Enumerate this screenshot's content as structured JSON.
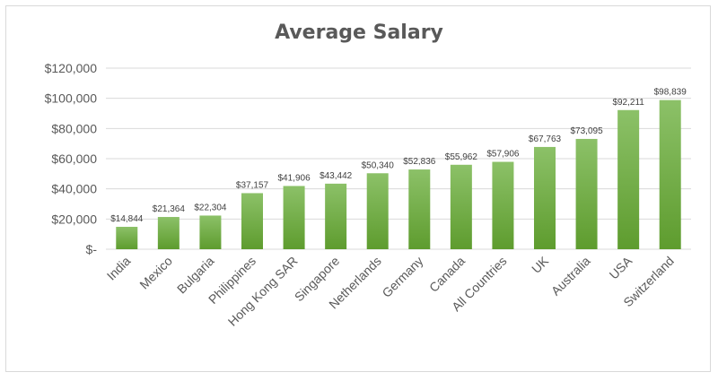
{
  "chart_data": {
    "type": "bar",
    "title": "Average Salary",
    "xlabel": "",
    "ylabel": "",
    "ylim": [
      0,
      120000
    ],
    "y_tick_values": [
      0,
      20000,
      40000,
      60000,
      80000,
      100000,
      120000
    ],
    "y_tick_labels": [
      "$-",
      "$20,000",
      "$40,000",
      "$60,000",
      "$80,000",
      "$100,000",
      "$120,000"
    ],
    "grid": true,
    "legend": "none",
    "categories": [
      "India",
      "Mexico",
      "Bulgaria",
      "Philippines",
      "Hong Kong SAR",
      "Singapore",
      "Netherlands",
      "Germany",
      "Canada",
      "All Countries",
      "UK",
      "Australia",
      "USA",
      "Switzerland"
    ],
    "values": [
      14844,
      21364,
      22304,
      37157,
      41906,
      43442,
      50340,
      52836,
      55962,
      57906,
      67763,
      73095,
      92211,
      98839
    ],
    "data_labels": [
      "$14,844",
      "$21,364",
      "$22,304",
      "$37,157",
      "$41,906",
      "$43,442",
      "$50,340",
      "$52,836",
      "$55,962",
      "$57,906",
      "$67,763",
      "$73,095",
      "$92,211",
      "$98,839"
    ],
    "colors": {
      "bar_top": "#8cc168",
      "bar_bottom": "#5e9c2e",
      "grid": "#d9d9d9",
      "text": "#595959"
    }
  }
}
